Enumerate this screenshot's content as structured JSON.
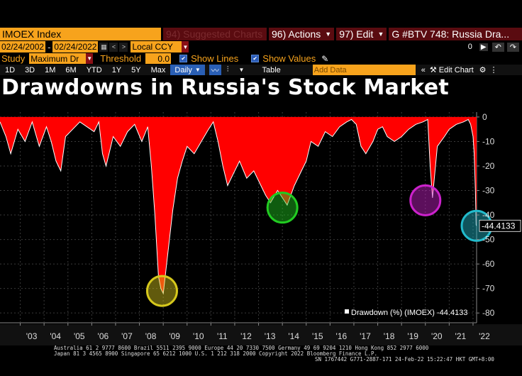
{
  "toolbar": {
    "ticker": "IMOEX Index",
    "suggested": "94) Suggested Charts",
    "actions": "96) Actions",
    "edit": "97) Edit",
    "chart_title_field": "G #BTV 748: Russia Dra..."
  },
  "range": {
    "start_date": "02/24/2002",
    "end_date": "02/24/2022",
    "currency": "Local CCY",
    "page": "0"
  },
  "study": {
    "study_label": "Study",
    "study_value": "Maximum Dr",
    "threshold_label": "Threshold",
    "threshold_value": "0.0",
    "show_lines": "Show Lines",
    "show_values": "Show Values"
  },
  "periods": [
    "1D",
    "3D",
    "1M",
    "6M",
    "YTD",
    "1Y",
    "5Y",
    "Max"
  ],
  "frequency": "Daily",
  "table_label": "Table",
  "add_data_placeholder": "Add Data",
  "edit_chart": "Edit Chart",
  "colors": {
    "fill": "#ff0000",
    "line": "#ffffff",
    "background": "#000000",
    "circles": [
      "#d6c81c",
      "#22cc22",
      "#cc22cc",
      "#22bbcc"
    ]
  },
  "footer": {
    "line1": "Australia 61 2 9777 8600 Brazil 5511 2395 9000 Europe 44 20 7330 7500 Germany 49 69 9204 1210 Hong Kong 852 2977 6000",
    "line2": "Japan 81 3 4565 8900       Singapore 65 6212 1000       U.S. 1 212 318 2000           Copyright 2022 Bloomberg Finance L.P.",
    "line3": "SN 1767442 G771-2887-171 24-Feb-22 15:22:47 HKT  GMT+8:00"
  },
  "chart_data": {
    "type": "area",
    "title": "Drawdowns in Russia's Stock Market",
    "legend": "Drawdown (%) (IMOEX) -44.4133",
    "legend_position": "bottom-right",
    "last_value": -44.4133,
    "last_value_label": "-44.4133",
    "xlabel": "",
    "ylabel": "",
    "xlim": [
      2002.15,
      2022.15
    ],
    "ylim": [
      -84,
      2
    ],
    "y_ticks": [
      0,
      -10,
      -20,
      -30,
      -40,
      -50,
      -60,
      -70,
      -80
    ],
    "x_ticks": [
      "'03",
      "'04",
      "'05",
      "'06",
      "'07",
      "'08",
      "'09",
      "'10",
      "'11",
      "'12",
      "'13",
      "'14",
      "'15",
      "'16",
      "'17",
      "'18",
      "'19",
      "'20",
      "'21",
      "'22"
    ],
    "x_tick_years": [
      2003,
      2004,
      2005,
      2006,
      2007,
      2008,
      2009,
      2010,
      2011,
      2012,
      2013,
      2014,
      2015,
      2016,
      2017,
      2018,
      2019,
      2020,
      2021,
      2022
    ],
    "grid": true,
    "series": [
      {
        "x": [
          2002.15,
          2002.4,
          2002.6,
          2002.9,
          2003.2,
          2003.5,
          2003.8,
          2004.1,
          2004.3,
          2004.5,
          2004.7,
          2004.9,
          2005.2,
          2005.5,
          2005.8,
          2006.1,
          2006.3,
          2006.45,
          2006.6,
          2006.9,
          2007.2,
          2007.5,
          2007.8,
          2008.1,
          2008.35,
          2008.5,
          2008.65,
          2008.8,
          2008.9,
          2009.0,
          2009.2,
          2009.4,
          2009.6,
          2009.8,
          2010.0,
          2010.3,
          2010.6,
          2010.9,
          2011.1,
          2011.3,
          2011.5,
          2011.7,
          2011.9,
          2012.2,
          2012.5,
          2012.8,
          2013.1,
          2013.3,
          2013.5,
          2013.8,
          2014.0,
          2014.2,
          2014.5,
          2014.8,
          2015.0,
          2015.2,
          2015.5,
          2015.8,
          2016.1,
          2016.4,
          2016.7,
          2016.9,
          2017.1,
          2017.3,
          2017.5,
          2017.8,
          2018.0,
          2018.2,
          2018.4,
          2018.7,
          2019.0,
          2019.3,
          2019.6,
          2019.9,
          2020.1,
          2020.2,
          2020.3,
          2020.5,
          2020.8,
          2021.0,
          2021.3,
          2021.6,
          2021.8,
          2021.9,
          2022.0,
          2022.05,
          2022.1,
          2022.13,
          2022.15
        ],
        "y": [
          -2,
          -8,
          -15,
          -5,
          -10,
          -2,
          -12,
          -4,
          -10,
          -18,
          -22,
          -8,
          -5,
          -2,
          -4,
          -6,
          -2,
          -15,
          -20,
          -8,
          -12,
          -6,
          -3,
          -10,
          -4,
          -20,
          -40,
          -65,
          -70,
          -72,
          -55,
          -38,
          -25,
          -18,
          -12,
          -15,
          -10,
          -5,
          -2,
          -10,
          -20,
          -28,
          -24,
          -18,
          -25,
          -22,
          -28,
          -32,
          -35,
          -30,
          -33,
          -36,
          -28,
          -22,
          -18,
          -10,
          -12,
          -6,
          -8,
          -4,
          -2,
          -1,
          -3,
          -12,
          -15,
          -10,
          -5,
          -4,
          -8,
          -10,
          -8,
          -5,
          -3,
          -2,
          -1,
          -20,
          -33,
          -12,
          -8,
          -5,
          -3,
          -2,
          -1,
          -3,
          -8,
          -15,
          -30,
          -44,
          -44.4133
        ]
      }
    ]
  }
}
